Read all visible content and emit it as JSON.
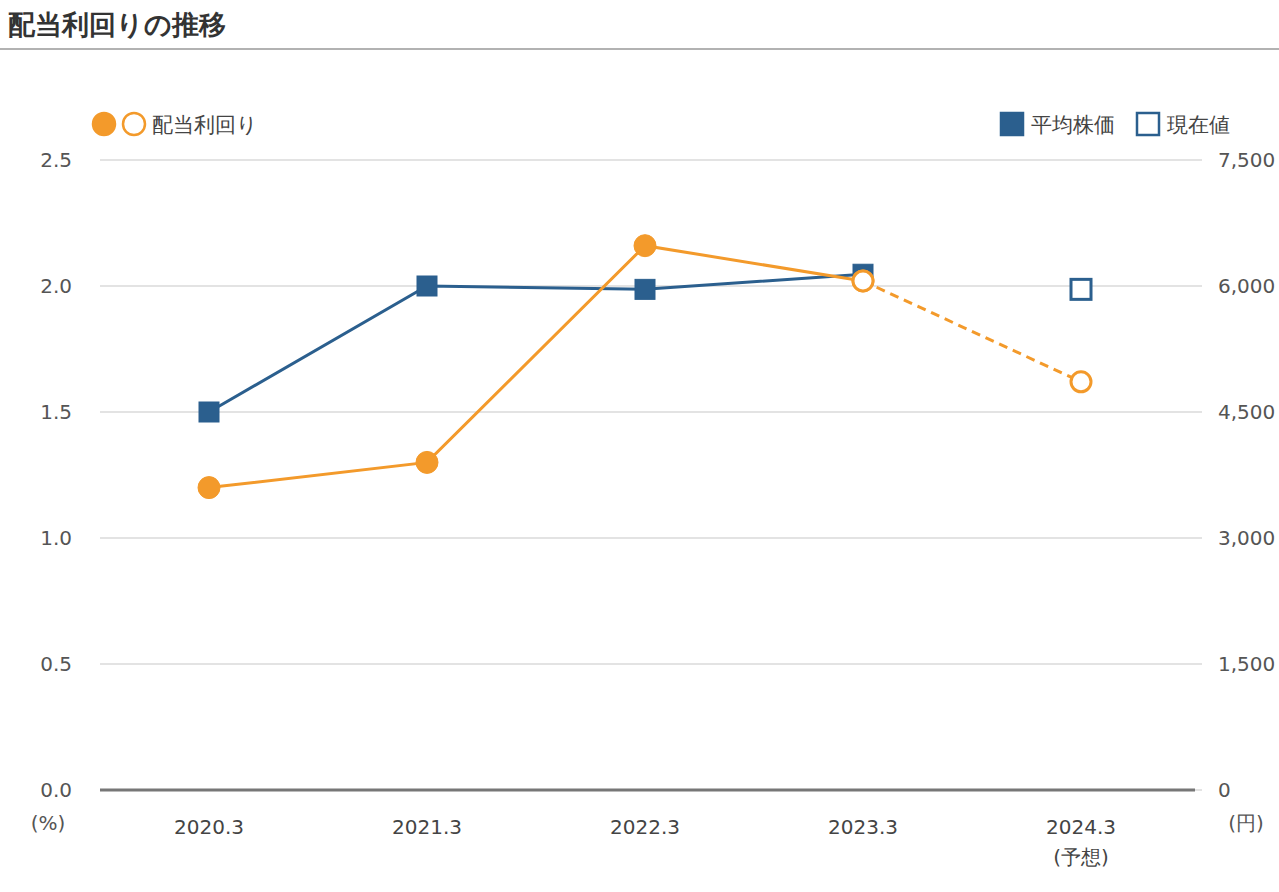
{
  "chart_data": {
    "type": "line",
    "title": "配当利回りの推移",
    "categories": [
      "2020.3",
      "2021.3",
      "2022.3",
      "2023.3",
      "2024.3\n(予想)"
    ],
    "ylabel": "(%)",
    "y2label": "(円)",
    "ylim": [
      0,
      2.5
    ],
    "yticks": [
      {
        "value": 0,
        "label": "0.0"
      },
      0.5,
      {
        "value": 1,
        "label": "1.0"
      },
      1.5,
      {
        "value": 2,
        "label": "2.0"
      },
      2.5
    ],
    "y2lim": [
      0,
      7500
    ],
    "y2ticks": [
      0,
      {
        "value": 1500,
        "label": "1,500"
      },
      {
        "value": 3000,
        "label": "3,000"
      },
      {
        "value": 4500,
        "label": "4,500"
      },
      {
        "value": 6000,
        "label": "6,000"
      },
      {
        "value": 7500,
        "label": "7,500"
      }
    ],
    "grid": true,
    "series": [
      {
        "name": "配当利回り",
        "color": "#f39a2b",
        "marker": "circle",
        "line_style": "solid",
        "values": [
          1.2,
          1.3,
          2.16,
          2.02,
          null
        ]
      },
      {
        "name": "配当利回り",
        "color": "#f39a2b",
        "marker": "circle-open",
        "line_style": "dashed",
        "values": [
          null,
          null,
          null,
          2.02,
          1.62
        ]
      },
      {
        "name": "平均株価",
        "color": "#2b5f8e",
        "marker": "square",
        "line_style": "solid",
        "axis": "y2",
        "values": [
          4500,
          6000,
          5960,
          6140,
          null
        ]
      },
      {
        "name": "現在値",
        "color": "#2b5f8e",
        "marker": "square-open",
        "line_style": "none",
        "axis": "y2",
        "values": [
          null,
          null,
          null,
          null,
          5960
        ]
      }
    ]
  }
}
